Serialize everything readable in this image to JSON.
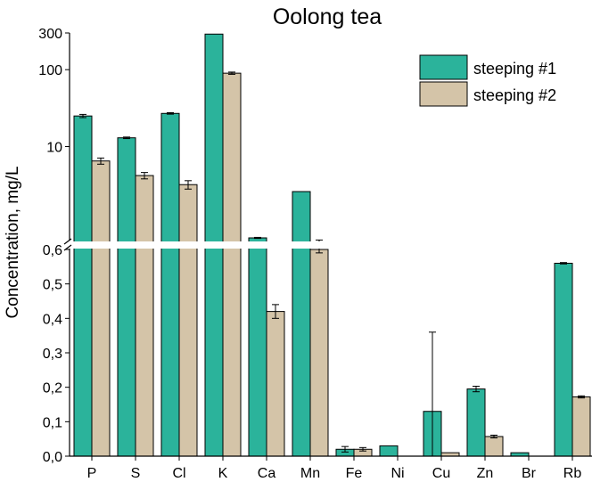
{
  "chart_data": {
    "type": "bar",
    "title": "Oolong tea",
    "xlabel": "",
    "ylabel": "Concentration, mg/L",
    "categories": [
      "P",
      "S",
      "Cl",
      "K",
      "Ca",
      "Mn",
      "Fe",
      "Ni",
      "Cu",
      "Zn",
      "Br",
      "Rb"
    ],
    "y_scale": "broken: linear 0–0.6 (lower segment), log 0.6–300 (upper segment)",
    "lower_ylim": [
      0,
      0.6
    ],
    "upper_ylim": [
      0.6,
      300
    ],
    "lower_ticks": [
      "0,0",
      "0,1",
      "0,2",
      "0,3",
      "0,4",
      "0,5",
      "0,6"
    ],
    "upper_ticks": [
      "10",
      "100",
      "300"
    ],
    "series": [
      {
        "name": "steeping #1",
        "color": "#2bb39b",
        "values": [
          25,
          13,
          27,
          290,
          0.65,
          2.6,
          0.02,
          0.03,
          0.13,
          0.195,
          0.01,
          0.56
        ],
        "errors": [
          1.2,
          0.3,
          0.6,
          0,
          0.01,
          0,
          0.008,
          0,
          0.23,
          0.008,
          0,
          0.002
        ]
      },
      {
        "name": "steeping #2",
        "color": "#d4c4a8",
        "values": [
          6.5,
          4.2,
          3.2,
          90,
          0.42,
          0.6,
          0.02,
          0,
          0.01,
          0.057,
          0,
          0.172
        ],
        "errors": [
          0.6,
          0.4,
          0.4,
          3,
          0.02,
          0.01,
          0.005,
          0,
          0,
          0.004,
          0,
          0.003
        ]
      }
    ],
    "legend": "top-right",
    "grid": false
  }
}
